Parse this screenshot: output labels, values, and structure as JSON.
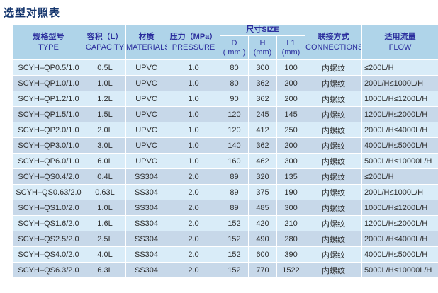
{
  "page_title": "选型对照表",
  "colors": {
    "title_text": "#14356d",
    "header_bg": "#afd4e9",
    "header_text": "#2c2f9e",
    "row_light_bg": "#d9ecf8",
    "row_dark_bg": "#c7d8e9",
    "cell_text": "#2f2f2f",
    "grid_line": "#ffffff"
  },
  "table": {
    "headers": {
      "type_zh": "规格型号",
      "type_en": "TYPE",
      "capacity_zh": "容积（L）",
      "capacity_en": "CAPACITY",
      "materials_zh": "材质",
      "materials_en": "MATERIALS",
      "pressure_zh": "压力（MPa）",
      "pressure_en": "PRESSURE",
      "size_group": "尺寸SIZE",
      "size_d_line1": "D",
      "size_d_line2": "( mm )",
      "size_h_line1": "H",
      "size_h_line2": "(mm)",
      "size_l1_line1": "L1",
      "size_l1_line2": "(mm)",
      "connections_zh": "联接方式",
      "connections_en": "CONNECTIONS",
      "flow_zh": "适用流量",
      "flow_en": "FLOW"
    },
    "rows": [
      {
        "type": "SCYH–QP0.5/1.0",
        "capacity": "0.5L",
        "material": "UPVC",
        "pressure": "1.0",
        "d": "80",
        "h": "300",
        "l1": "100",
        "connection": "内螺纹",
        "flow": "≤200L/H"
      },
      {
        "type": "SCYH–QP1.0/1.0",
        "capacity": "1.0L",
        "material": "UPVC",
        "pressure": "1.0",
        "d": "80",
        "h": "362",
        "l1": "200",
        "connection": "内螺纹",
        "flow": "200L/H≤1000L/H"
      },
      {
        "type": "SCYH–QP1.2/1.0",
        "capacity": "1.2L",
        "material": "UPVC",
        "pressure": "1.0",
        "d": "90",
        "h": "362",
        "l1": "200",
        "connection": "内螺纹",
        "flow": "1000L/H≤1200L/H"
      },
      {
        "type": "SCYH–QP1.5/1.0",
        "capacity": "1.5L",
        "material": "UPVC",
        "pressure": "1.0",
        "d": "120",
        "h": "245",
        "l1": "145",
        "connection": "内螺纹",
        "flow": "1200L/H≤2000L/H"
      },
      {
        "type": "SCYH–QP2.0/1.0",
        "capacity": "2.0L",
        "material": "UPVC",
        "pressure": "1.0",
        "d": "120",
        "h": "412",
        "l1": "250",
        "connection": "内螺纹",
        "flow": "2000L/H≤4000L/H"
      },
      {
        "type": "SCYH–QP3.0/1.0",
        "capacity": "3.0L",
        "material": "UPVC",
        "pressure": "1.0",
        "d": "140",
        "h": "362",
        "l1": "200",
        "connection": "内螺纹",
        "flow": "4000L/H≤5000L/H"
      },
      {
        "type": "SCYH–QP6.0/1.0",
        "capacity": "6.0L",
        "material": "UPVC",
        "pressure": "1.0",
        "d": "160",
        "h": "462",
        "l1": "300",
        "connection": "内螺纹",
        "flow": "5000L/H≤10000L/H"
      },
      {
        "type": "SCYH–QS0.4/2.0",
        "capacity": "0.4L",
        "material": "SS304",
        "pressure": "2.0",
        "d": "89",
        "h": "320",
        "l1": "135",
        "connection": "内螺纹",
        "flow": "≤200L/H"
      },
      {
        "type": "SCYH–QS0.63/2.0",
        "capacity": "0.63L",
        "material": "SS304",
        "pressure": "2.0",
        "d": "89",
        "h": "375",
        "l1": "190",
        "connection": "内螺纹",
        "flow": "200L/H≤1000L/H"
      },
      {
        "type": "SCYH–QS1.0/2.0",
        "capacity": "1.0L",
        "material": "SS304",
        "pressure": "2.0",
        "d": "89",
        "h": "485",
        "l1": "300",
        "connection": "内螺纹",
        "flow": "1000L/H≤1200L/H"
      },
      {
        "type": "SCYH–QS1.6/2.0",
        "capacity": "1.6L",
        "material": "SS304",
        "pressure": "2.0",
        "d": "152",
        "h": "420",
        "l1": "210",
        "connection": "内螺纹",
        "flow": "1200L/H≤2000L/H"
      },
      {
        "type": "SCYH–QS2.5/2.0",
        "capacity": "2.5L",
        "material": "SS304",
        "pressure": "2.0",
        "d": "152",
        "h": "490",
        "l1": "280",
        "connection": "内螺纹",
        "flow": "2000L/H≤4000L/H"
      },
      {
        "type": "SCYH–QS4.0/2.0",
        "capacity": "4.0L",
        "material": "SS304",
        "pressure": "2.0",
        "d": "152",
        "h": "600",
        "l1": "390",
        "connection": "内螺纹",
        "flow": "4000L/H≤5000L/H"
      },
      {
        "type": "SCYH–QS6.3/2.0",
        "capacity": "6.3L",
        "material": "SS304",
        "pressure": "2.0",
        "d": "152",
        "h": "770",
        "l1": "1522",
        "connection": "内螺纹",
        "flow": "5000L/H≤10000L/H"
      }
    ]
  }
}
